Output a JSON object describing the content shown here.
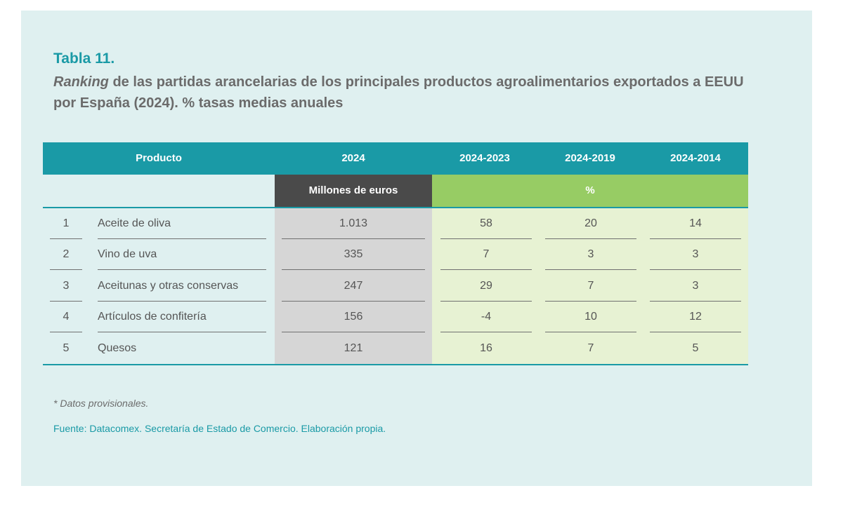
{
  "caption": {
    "title": "Tabla 11.",
    "subtitle_em": "Ranking",
    "subtitle_rest": " de las partidas arancelarias de los principales productos agroalimentarios exportados a EEUU por España (2024). % tasas medias anuales"
  },
  "table": {
    "headers": [
      "Producto",
      "2024",
      "2024-2023",
      "2024-2019",
      "2024-2014"
    ],
    "unit_value": "Millones de euros",
    "unit_pct": "%",
    "rows": [
      {
        "rank": "1",
        "product": "Aceite de oliva",
        "v2024": "1.013",
        "r1": "58",
        "r5": "20",
        "r10": "14"
      },
      {
        "rank": "2",
        "product": "Vino de uva",
        "v2024": "335",
        "r1": "7",
        "r5": "3",
        "r10": "3"
      },
      {
        "rank": "3",
        "product": "Aceitunas y otras conservas",
        "v2024": "247",
        "r1": "29",
        "r5": "7",
        "r10": "3"
      },
      {
        "rank": "4",
        "product": "Artículos de confitería",
        "v2024": "156",
        "r1": "-4",
        "r5": "10",
        "r10": "12"
      },
      {
        "rank": "5",
        "product": "Quesos",
        "v2024": "121",
        "r1": "16",
        "r5": "7",
        "r10": "5"
      }
    ]
  },
  "notes": "* Datos provisionales.",
  "source": "Fuente: Datacomex. Secretaría de Estado de Comercio. Elaboración propia.",
  "colors": {
    "teal": "#1a9aa6",
    "dark_header": "#4a4a4a",
    "green_header": "#97cc64",
    "panel_bg": "#dff0f0"
  }
}
